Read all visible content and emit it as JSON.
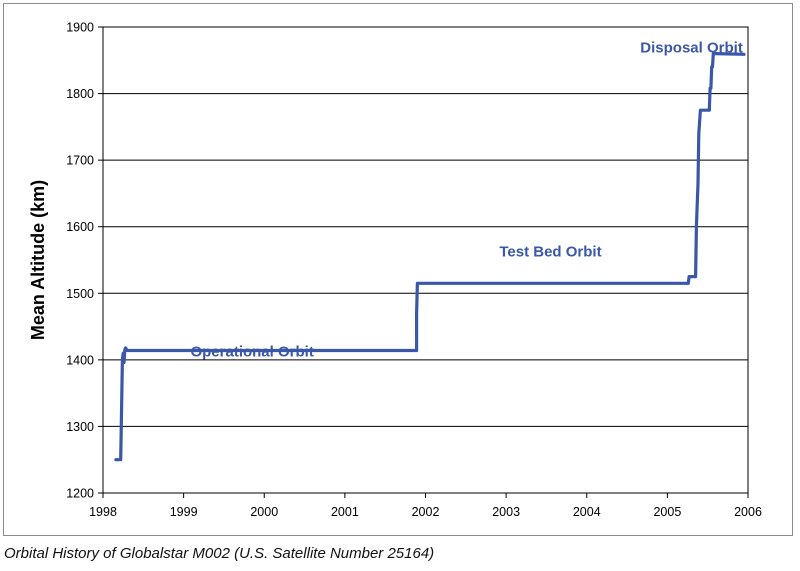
{
  "caption": "Orbital History of Globalstar M002 (U.S. Satellite Number 25164)",
  "chart_data": {
    "type": "line",
    "title": "",
    "xlabel": "",
    "ylabel": "Mean Altitude  (km)",
    "xlim": [
      1998,
      2006
    ],
    "ylim": [
      1200,
      1900
    ],
    "xticks": [
      "1998",
      "1999",
      "2000",
      "2001",
      "2002",
      "2003",
      "2004",
      "2005",
      "2006"
    ],
    "yticks": [
      "1200",
      "1300",
      "1400",
      "1500",
      "1600",
      "1700",
      "1800",
      "1900"
    ],
    "grid": "horizontal",
    "line_color": "#3a57a8",
    "series": [
      {
        "name": "",
        "x": [
          1998.16,
          1998.22,
          1998.23,
          1998.24,
          1998.25,
          1998.26,
          1998.27,
          1998.28,
          1998.3,
          1998.35,
          1999.0,
          2000.0,
          2001.0,
          2001.89,
          2001.89,
          2001.9,
          2003.0,
          2004.0,
          2005.26,
          2005.27,
          2005.35,
          2005.36,
          2005.38,
          2005.39,
          2005.41,
          2005.42,
          2005.52,
          2005.53,
          2005.54,
          2005.55,
          2005.56,
          2005.57,
          2005.6,
          2005.95
        ],
        "y": [
          1250,
          1250,
          1320,
          1400,
          1410,
          1396,
          1415,
          1418,
          1414,
          1414,
          1414,
          1414,
          1414,
          1414,
          1470,
          1515,
          1515,
          1515,
          1515,
          1525,
          1525,
          1600,
          1665,
          1740,
          1775,
          1775,
          1775,
          1808,
          1808,
          1840,
          1840,
          1860,
          1860,
          1859
        ]
      }
    ],
    "annotations": [
      {
        "text": "Operational Orbit",
        "x": 1999.85,
        "y": 1405
      },
      {
        "text": "Test Bed Orbit",
        "x": 2003.55,
        "y": 1555
      },
      {
        "text": "Disposal Orbit",
        "x": 2005.3,
        "y": 1862
      }
    ]
  }
}
